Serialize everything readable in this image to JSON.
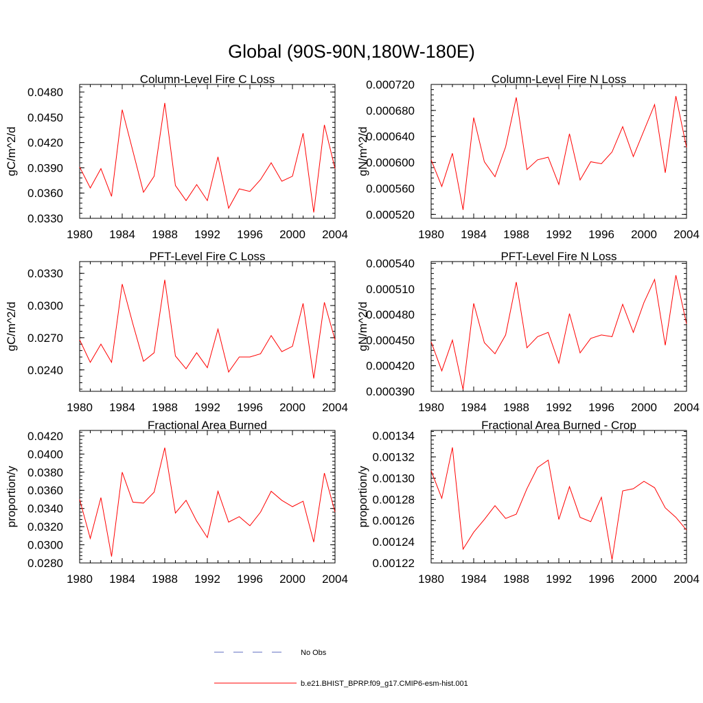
{
  "figure_title": "Global (90S-90N,180W-180E)",
  "colors": {
    "model": "#ff0000",
    "obs": "#5c6bc0",
    "axis": "#000000"
  },
  "legend": {
    "obs_label": "No Obs",
    "model_label": "b.e21.BHIST_BPRP.f09_g17.CMIP6-esm-hist.001"
  },
  "chart_data": [
    {
      "type": "line",
      "title": "Column-Level Fire C Loss",
      "ylabel": "gC/m^2/d",
      "xlim": [
        1980,
        2004
      ],
      "ylim": [
        0.033,
        0.0489
      ],
      "xticks": [
        1980,
        1984,
        1988,
        1992,
        1996,
        2000,
        2004
      ],
      "yticks": [
        0.033,
        0.036,
        0.039,
        0.042,
        0.045,
        0.048
      ],
      "ytick_labels": [
        "0.0330",
        "0.0360",
        "0.0390",
        "0.0420",
        "0.0450",
        "0.0480"
      ],
      "x": [
        1980,
        1981,
        1982,
        1983,
        1984,
        1985,
        1986,
        1987,
        1988,
        1989,
        1990,
        1991,
        1992,
        1993,
        1994,
        1995,
        1996,
        1997,
        1998,
        1999,
        2000,
        2001,
        2002,
        2003,
        2004
      ],
      "series": [
        {
          "name": "b.e21.BHIST_BPRP.f09_g17.CMIP6-esm-hist.001",
          "values": [
            0.0391,
            0.0366,
            0.0389,
            0.0356,
            0.0459,
            0.041,
            0.0361,
            0.038,
            0.0467,
            0.0369,
            0.0351,
            0.037,
            0.0351,
            0.0403,
            0.0342,
            0.0365,
            0.0362,
            0.0376,
            0.0396,
            0.0374,
            0.038,
            0.0431,
            0.0337,
            0.0441,
            0.0389
          ]
        }
      ]
    },
    {
      "type": "line",
      "title": "Column-Level Fire N Loss",
      "ylabel": "gN/m^2/d",
      "xlim": [
        1980,
        2004
      ],
      "ylim": [
        0.000514,
        0.00072
      ],
      "xticks": [
        1980,
        1984,
        1988,
        1992,
        1996,
        2000,
        2004
      ],
      "yticks": [
        0.00052,
        0.00056,
        0.0006,
        0.00064,
        0.00068,
        0.00072
      ],
      "ytick_labels": [
        "0.000520",
        "0.000560",
        "0.000600",
        "0.000640",
        "0.000680",
        "0.000720"
      ],
      "x": [
        1980,
        1981,
        1982,
        1983,
        1984,
        1985,
        1986,
        1987,
        1988,
        1989,
        1990,
        1991,
        1992,
        1993,
        1994,
        1995,
        1996,
        1997,
        1998,
        1999,
        2000,
        2001,
        2002,
        2003,
        2004
      ],
      "series": [
        {
          "name": "b.e21.BHIST_BPRP.f09_g17.CMIP6-esm-hist.001",
          "values": [
            0.000604,
            0.000563,
            0.000614,
            0.000527,
            0.000669,
            0.000601,
            0.000578,
            0.000624,
            0.0007,
            0.000589,
            0.000604,
            0.000608,
            0.000566,
            0.000644,
            0.000573,
            0.000601,
            0.000598,
            0.000616,
            0.000655,
            0.000609,
            0.000649,
            0.000689,
            0.000584,
            0.000702,
            0.000623
          ]
        }
      ]
    },
    {
      "type": "line",
      "title": "PFT-Level Fire C Loss",
      "ylabel": "gC/m^2/d",
      "xlim": [
        1980,
        2004
      ],
      "ylim": [
        0.022,
        0.0341
      ],
      "xticks": [
        1980,
        1984,
        1988,
        1992,
        1996,
        2000,
        2004
      ],
      "yticks": [
        0.024,
        0.027,
        0.03,
        0.033
      ],
      "ytick_labels": [
        "0.0240",
        "0.0270",
        "0.0300",
        "0.0330"
      ],
      "x": [
        1980,
        1981,
        1982,
        1983,
        1984,
        1985,
        1986,
        1987,
        1988,
        1989,
        1990,
        1991,
        1992,
        1993,
        1994,
        1995,
        1996,
        1997,
        1998,
        1999,
        2000,
        2001,
        2002,
        2003,
        2004
      ],
      "series": [
        {
          "name": "b.e21.BHIST_BPRP.f09_g17.CMIP6-esm-hist.001",
          "values": [
            0.0268,
            0.0247,
            0.0264,
            0.0247,
            0.032,
            0.0283,
            0.0248,
            0.0256,
            0.0324,
            0.0253,
            0.0241,
            0.0256,
            0.0242,
            0.0278,
            0.0238,
            0.0252,
            0.0252,
            0.0255,
            0.0272,
            0.0257,
            0.0262,
            0.0302,
            0.0232,
            0.0303,
            0.0268
          ]
        }
      ]
    },
    {
      "type": "line",
      "title": "PFT-Level Fire N Loss",
      "ylabel": "gN/m^2/d",
      "xlim": [
        1980,
        2004
      ],
      "ylim": [
        0.00039,
        0.000542
      ],
      "xticks": [
        1980,
        1984,
        1988,
        1992,
        1996,
        2000,
        2004
      ],
      "yticks": [
        0.00039,
        0.00042,
        0.00045,
        0.00048,
        0.00051,
        0.00054
      ],
      "ytick_labels": [
        "0.000390",
        "0.000420",
        "0.000450",
        "0.000480",
        "0.000510",
        "0.000540"
      ],
      "x": [
        1980,
        1981,
        1982,
        1983,
        1984,
        1985,
        1986,
        1987,
        1988,
        1989,
        1990,
        1991,
        1992,
        1993,
        1994,
        1995,
        1996,
        1997,
        1998,
        1999,
        2000,
        2001,
        2002,
        2003,
        2004
      ],
      "series": [
        {
          "name": "b.e21.BHIST_BPRP.f09_g17.CMIP6-esm-hist.001",
          "values": [
            0.000448,
            0.000414,
            0.00045,
            0.000392,
            0.000493,
            0.000447,
            0.000434,
            0.000456,
            0.000518,
            0.000441,
            0.000454,
            0.000459,
            0.000423,
            0.000481,
            0.000435,
            0.000452,
            0.000456,
            0.000454,
            0.000492,
            0.000459,
            0.000494,
            0.000521,
            0.000444,
            0.000526,
            0.000469
          ]
        }
      ]
    },
    {
      "type": "line",
      "title": "Fractional Area Burned",
      "ylabel": "proportion/y",
      "xlim": [
        1980,
        2004
      ],
      "ylim": [
        0.028,
        0.0426
      ],
      "xticks": [
        1980,
        1984,
        1988,
        1992,
        1996,
        2000,
        2004
      ],
      "yticks": [
        0.028,
        0.03,
        0.032,
        0.034,
        0.036,
        0.038,
        0.04,
        0.042
      ],
      "ytick_labels": [
        "0.0280",
        "0.0300",
        "0.0320",
        "0.0340",
        "0.0360",
        "0.0380",
        "0.0400",
        "0.0420"
      ],
      "x": [
        1980,
        1981,
        1982,
        1983,
        1984,
        1985,
        1986,
        1987,
        1988,
        1989,
        1990,
        1991,
        1992,
        1993,
        1994,
        1995,
        1996,
        1997,
        1998,
        1999,
        2000,
        2001,
        2002,
        2003,
        2004
      ],
      "series": [
        {
          "name": "b.e21.BHIST_BPRP.f09_g17.CMIP6-esm-hist.001",
          "values": [
            0.035,
            0.0307,
            0.0352,
            0.0287,
            0.038,
            0.0347,
            0.0346,
            0.0358,
            0.0407,
            0.0335,
            0.0349,
            0.0326,
            0.0308,
            0.0359,
            0.0325,
            0.0331,
            0.0321,
            0.0336,
            0.0359,
            0.0349,
            0.0342,
            0.0348,
            0.0303,
            0.0379,
            0.0336
          ]
        }
      ]
    },
    {
      "type": "line",
      "title": "Fractional Area Burned - Crop",
      "ylabel": "proportion/y",
      "xlim": [
        1980,
        2004
      ],
      "ylim": [
        0.00122,
        0.001345
      ],
      "xticks": [
        1980,
        1984,
        1988,
        1992,
        1996,
        2000,
        2004
      ],
      "yticks": [
        0.00122,
        0.00124,
        0.00126,
        0.00128,
        0.0013,
        0.00132,
        0.00134
      ],
      "ytick_labels": [
        "0.00122",
        "0.00124",
        "0.00126",
        "0.00128",
        "0.00130",
        "0.00132",
        "0.00134"
      ],
      "x": [
        1980,
        1981,
        1982,
        1983,
        1984,
        1985,
        1986,
        1987,
        1988,
        1989,
        1990,
        1991,
        1992,
        1993,
        1994,
        1995,
        1996,
        1997,
        1998,
        1999,
        2000,
        2001,
        2002,
        2003,
        2004
      ],
      "series": [
        {
          "name": "b.e21.BHIST_BPRP.f09_g17.CMIP6-esm-hist.001",
          "values": [
            0.001307,
            0.001281,
            0.001329,
            0.001233,
            0.001249,
            0.001261,
            0.001274,
            0.001262,
            0.001266,
            0.00129,
            0.00131,
            0.001317,
            0.001261,
            0.001292,
            0.001263,
            0.001259,
            0.001282,
            0.001223,
            0.001288,
            0.00129,
            0.001297,
            0.001291,
            0.001272,
            0.001263,
            0.001251
          ]
        }
      ]
    }
  ]
}
